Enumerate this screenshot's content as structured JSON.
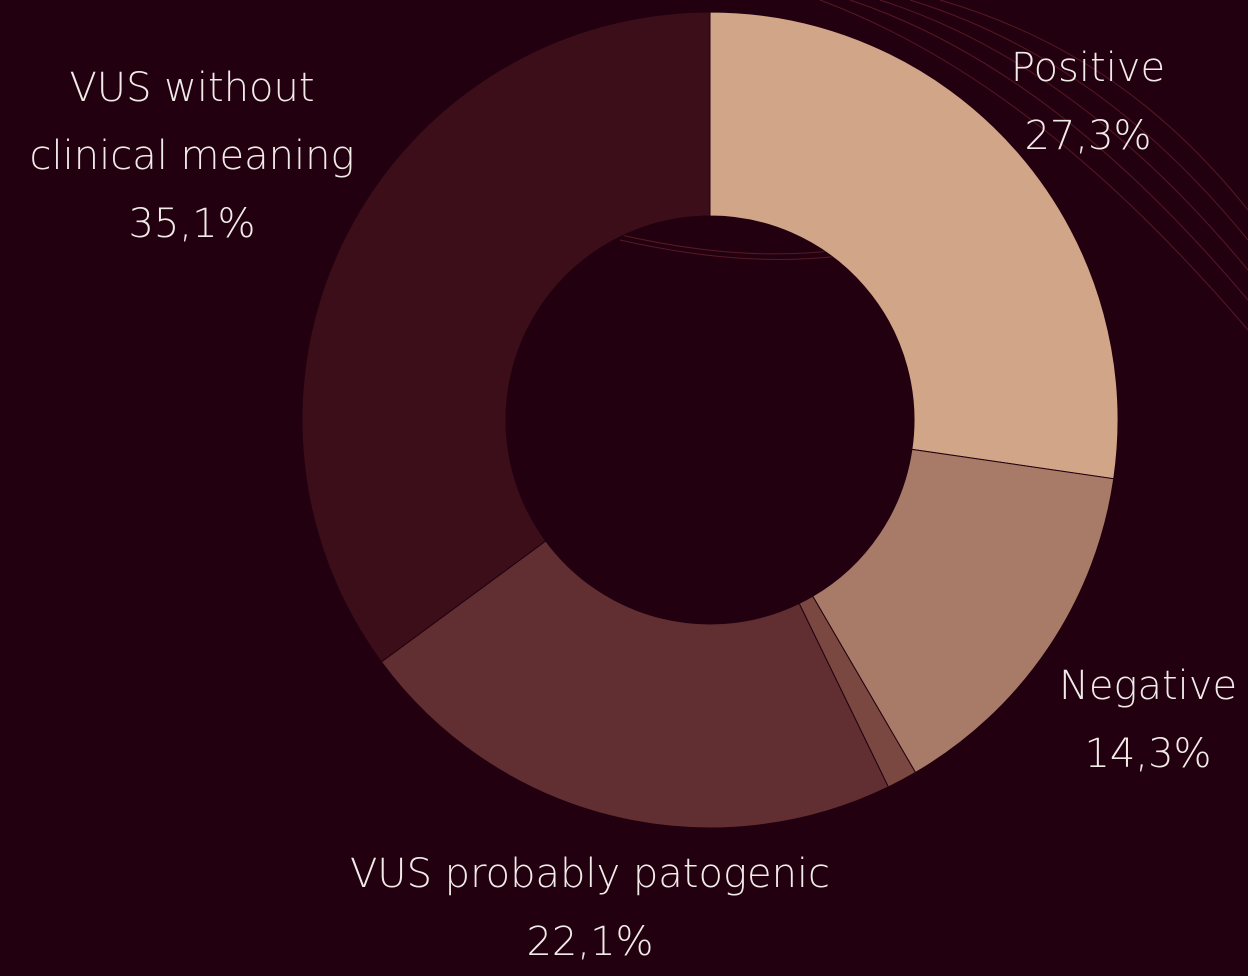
{
  "chart_data": {
    "type": "donut",
    "categories": [
      "Positive",
      "Negative",
      null,
      "VUS probably patogenic",
      "VUS without clinical meaning"
    ],
    "values": [
      27.3,
      14.3,
      1.2,
      22.1,
      35.1
    ],
    "value_labels": [
      "27,3%",
      "14,3%",
      null,
      "22,1%",
      "35,1%"
    ],
    "colors": [
      "#d1a587",
      "#a87b68",
      "#7a4841",
      "#612e32",
      "#3c0e1a"
    ]
  }
}
